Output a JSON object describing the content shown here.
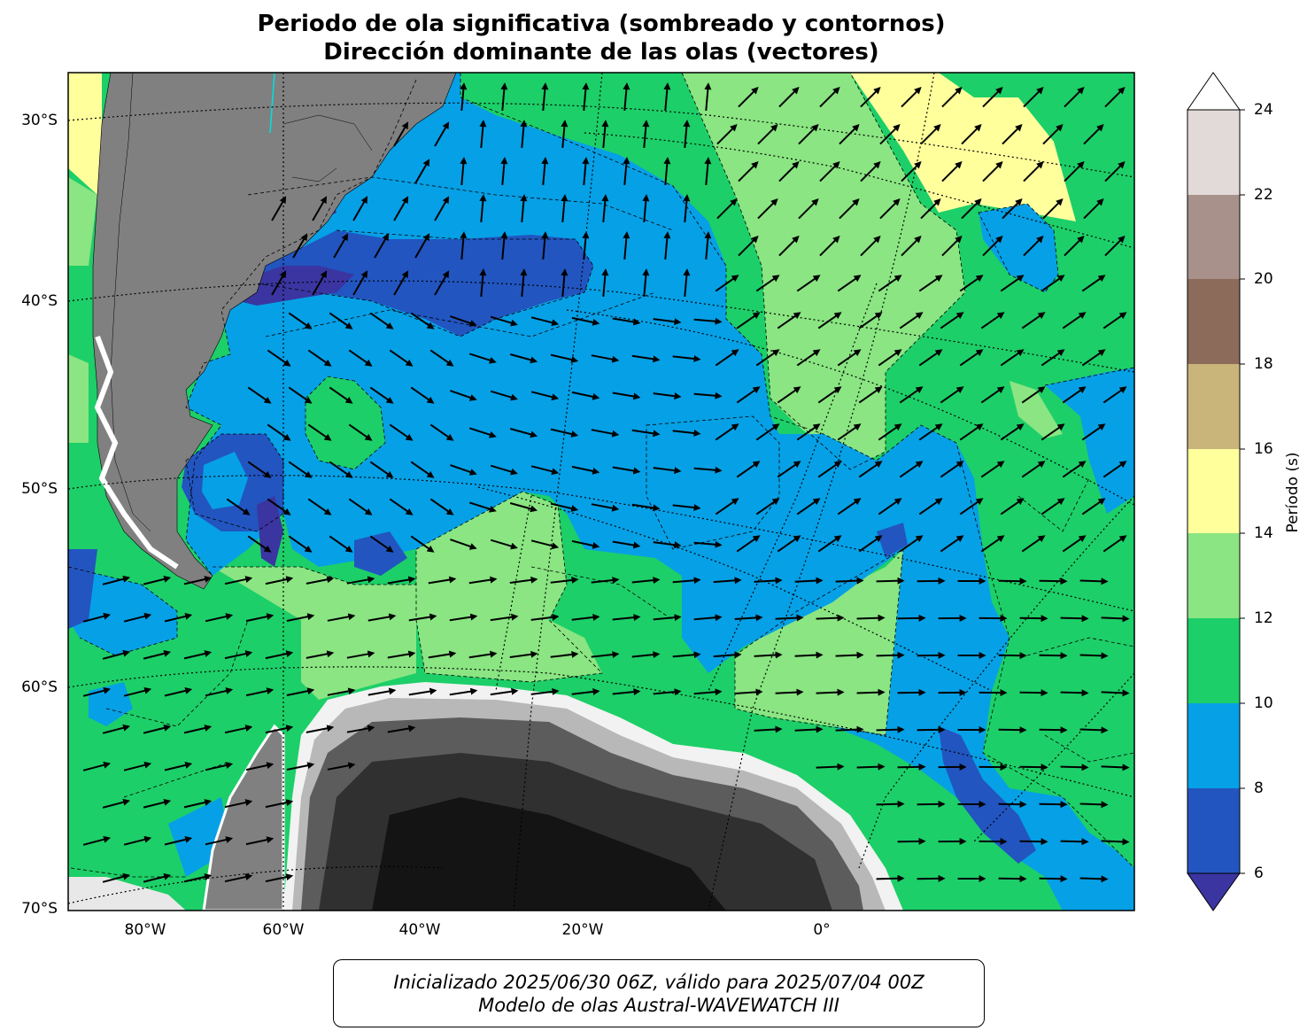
{
  "title": {
    "line1": "Periodo de ola significativa (sombreado y contornos)",
    "line2": "Dirección dominante de las olas (vectores)"
  },
  "map": {
    "lat_labels": [
      "30°S",
      "40°S",
      "50°S",
      "60°S",
      "70°S"
    ],
    "lon_labels": [
      "80°W",
      "60°W",
      "40°W",
      "20°W",
      "0°"
    ]
  },
  "colorbar": {
    "label": "Período (s)",
    "ticks": [
      "6",
      "8",
      "10",
      "12",
      "14",
      "16",
      "18",
      "20",
      "22",
      "24"
    ],
    "colors": [
      "#3a35a0",
      "#2255c0",
      "#06a0e6",
      "#1dcf68",
      "#8ae582",
      "#ffff9c",
      "#c9b47a",
      "#8c6b5a",
      "#a8918a",
      "#e2dad8",
      "#ffffff"
    ]
  },
  "info": {
    "line1": "Inicializado 2025/06/30 06Z, válido para 2025/07/04 00Z",
    "line2": "Modelo de olas Austral-WAVEWATCH III"
  }
}
